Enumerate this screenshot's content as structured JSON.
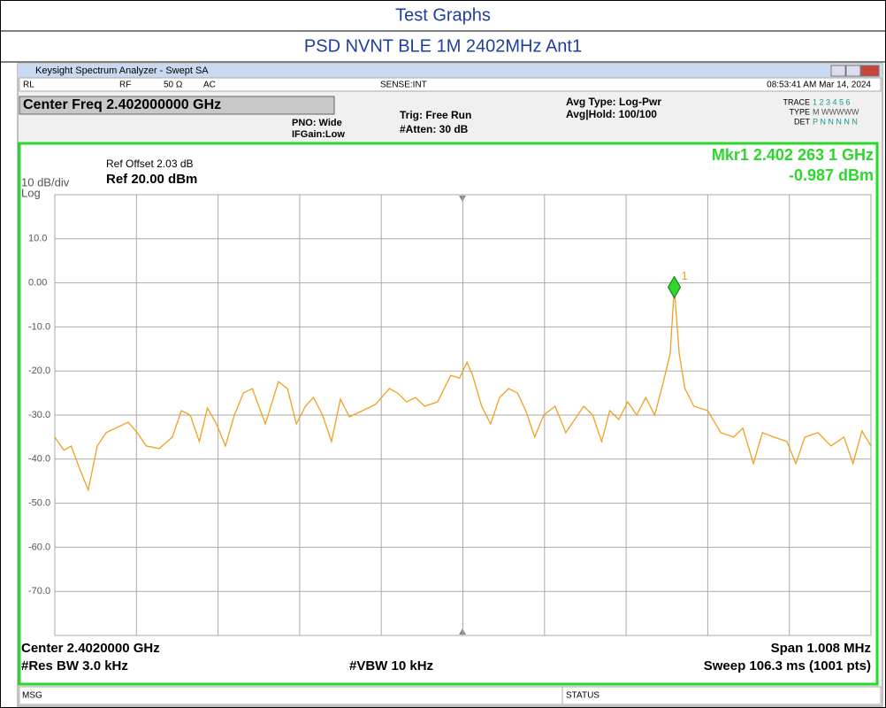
{
  "header": {
    "title": "Test Graphs",
    "subtitle": "PSD NVNT BLE 1M 2402MHz Ant1"
  },
  "window": {
    "title": "Keysight Spectrum Analyzer - Swept SA",
    "status": [
      "RL",
      "RF",
      "50 Ω",
      "AC",
      "SENSE:INT",
      "08:53:41 AM Mar 14, 2024"
    ],
    "center_freq": "Center Freq 2.402000000 GHz",
    "pno": "PNO: Wide",
    "ifgain": "IFGain:Low",
    "trig": "Trig: Free Run",
    "atten": "#Atten: 30 dB",
    "avg_type": "Avg Type: Log-Pwr",
    "avg_hold": "Avg|Hold: 100/100",
    "trace_rows": [
      [
        "TRACE",
        "1 2 3 4 5 6"
      ],
      [
        "TYPE",
        "M WWWWW"
      ],
      [
        "DET",
        "P N N N N N"
      ]
    ]
  },
  "display": {
    "ref_offset": "Ref Offset 2.03 dB",
    "ref_level": "Ref 20.00 dBm",
    "scale": "10 dB/div",
    "scale_type": "Log",
    "marker": {
      "freq_label": "Mkr1 2.402 263 1 GHz",
      "value_label": "-0.987 dBm",
      "number": "1",
      "x": 759,
      "value": -0.987
    },
    "footer": {
      "center": "Center 2.4020000 GHz",
      "rbw": "#Res BW 3.0 kHz",
      "vbw": "#VBW 10 kHz",
      "span": "Span 1.008 MHz",
      "sweep": "Sweep  106.3 ms (1001 pts)"
    }
  },
  "bottom": {
    "msg": "MSG",
    "status": "STATUS"
  },
  "chart_data": {
    "type": "line",
    "color": "#f0a020",
    "grid": true,
    "xlim": [
      0,
      1000
    ],
    "ylim": [
      -80,
      20
    ],
    "xticks": [
      0,
      100,
      200,
      300,
      400,
      500,
      600,
      700,
      800,
      900,
      1000
    ],
    "yticks": [
      20,
      {
        "value": 10,
        "label": "10.0"
      },
      {
        "value": 0,
        "label": "0.00"
      },
      {
        "value": -10,
        "label": "-10.0"
      },
      {
        "value": -20,
        "label": "-20.0"
      },
      {
        "value": -30,
        "label": "-30.0"
      },
      {
        "value": -40,
        "label": "-40.0"
      },
      {
        "value": -50,
        "label": "-50.0"
      },
      {
        "value": -60,
        "label": "-60.0"
      },
      {
        "value": -70,
        "label": "-70.0"
      },
      -80
    ],
    "x": [
      0,
      11,
      20,
      30,
      41,
      52,
      63,
      74,
      90,
      101,
      112,
      128,
      144,
      155,
      166,
      177,
      187,
      198,
      209,
      220,
      231,
      242,
      258,
      274,
      285,
      296,
      307,
      317,
      328,
      339,
      350,
      361,
      377,
      393,
      410,
      420,
      431,
      442,
      453,
      469,
      485,
      496,
      505,
      512,
      523,
      534,
      545,
      556,
      567,
      577,
      588,
      599,
      613,
      626,
      637,
      648,
      659,
      670,
      680,
      691,
      702,
      713,
      724,
      735,
      745,
      754,
      759,
      765,
      772,
      783,
      800,
      816,
      832,
      843,
      856,
      867,
      881,
      897,
      908,
      919,
      935,
      951,
      967,
      978,
      989,
      1000
    ],
    "values": [
      -35,
      -38,
      -37,
      -42,
      -47,
      -37,
      -34,
      -33,
      -31.6,
      -34,
      -37,
      -37.6,
      -35,
      -29,
      -30,
      -36,
      -28.4,
      -32,
      -37,
      -30,
      -25,
      -24,
      -32,
      -22.4,
      -24,
      -32,
      -28,
      -26,
      -30,
      -36,
      -26.4,
      -30.4,
      -29,
      -27.6,
      -24,
      -25,
      -27,
      -26,
      -28,
      -27,
      -21,
      -21.6,
      -18,
      -21,
      -28,
      -32,
      -26,
      -24,
      -25,
      -29,
      -35,
      -30,
      -28,
      -34,
      -31,
      -28,
      -30,
      -36,
      -29,
      -31,
      -27,
      -30,
      -26,
      -30,
      -23,
      -16,
      -1,
      -16,
      -24,
      -28,
      -29,
      -34,
      -35,
      -33,
      -41,
      -34,
      -35,
      -36,
      -41,
      -35,
      -34,
      -37,
      -35,
      -41,
      -33.6,
      -37
    ]
  }
}
